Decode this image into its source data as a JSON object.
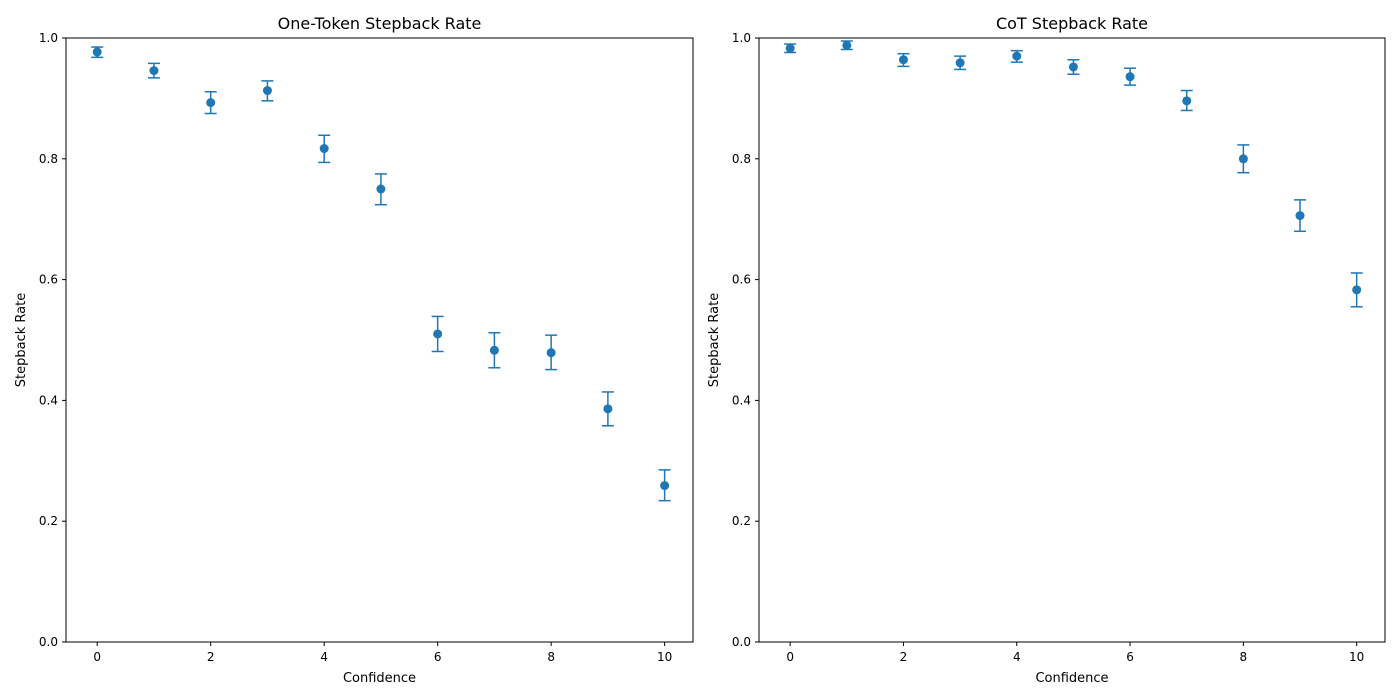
{
  "chart_data": [
    {
      "type": "scatter",
      "title": "One-Token Stepback Rate",
      "xlabel": "Confidence",
      "ylabel": "Stepback Rate",
      "xlim": [
        -0.55,
        10.5
      ],
      "ylim": [
        0,
        1.0
      ],
      "xticks": [
        0,
        2,
        4,
        6,
        8,
        10
      ],
      "yticks": [
        0.0,
        0.2,
        0.4,
        0.6,
        0.8,
        1.0
      ],
      "grid": false,
      "marker_color": "#1f77b4",
      "points": [
        {
          "x": 0,
          "y": 0.977,
          "lo": 0.968,
          "hi": 0.985
        },
        {
          "x": 1,
          "y": 0.946,
          "lo": 0.934,
          "hi": 0.958
        },
        {
          "x": 2,
          "y": 0.893,
          "lo": 0.875,
          "hi": 0.911
        },
        {
          "x": 3,
          "y": 0.913,
          "lo": 0.896,
          "hi": 0.929
        },
        {
          "x": 4,
          "y": 0.817,
          "lo": 0.794,
          "hi": 0.839
        },
        {
          "x": 5,
          "y": 0.75,
          "lo": 0.724,
          "hi": 0.775
        },
        {
          "x": 6,
          "y": 0.51,
          "lo": 0.481,
          "hi": 0.539
        },
        {
          "x": 7,
          "y": 0.483,
          "lo": 0.454,
          "hi": 0.512
        },
        {
          "x": 8,
          "y": 0.479,
          "lo": 0.451,
          "hi": 0.508
        },
        {
          "x": 9,
          "y": 0.386,
          "lo": 0.358,
          "hi": 0.414
        },
        {
          "x": 10,
          "y": 0.259,
          "lo": 0.234,
          "hi": 0.285
        }
      ]
    },
    {
      "type": "scatter",
      "title": "CoT Stepback Rate",
      "xlabel": "Confidence",
      "ylabel": "Stepback Rate",
      "xlim": [
        -0.55,
        10.5
      ],
      "ylim": [
        0,
        1.0
      ],
      "xticks": [
        0,
        2,
        4,
        6,
        8,
        10
      ],
      "yticks": [
        0.0,
        0.2,
        0.4,
        0.6,
        0.8,
        1.0
      ],
      "grid": false,
      "marker_color": "#1f77b4",
      "points": [
        {
          "x": 0,
          "y": 0.983,
          "lo": 0.976,
          "hi": 0.99
        },
        {
          "x": 1,
          "y": 0.988,
          "lo": 0.981,
          "hi": 0.995
        },
        {
          "x": 2,
          "y": 0.964,
          "lo": 0.953,
          "hi": 0.974
        },
        {
          "x": 3,
          "y": 0.959,
          "lo": 0.948,
          "hi": 0.97
        },
        {
          "x": 4,
          "y": 0.97,
          "lo": 0.96,
          "hi": 0.979
        },
        {
          "x": 5,
          "y": 0.952,
          "lo": 0.94,
          "hi": 0.964
        },
        {
          "x": 6,
          "y": 0.936,
          "lo": 0.922,
          "hi": 0.95
        },
        {
          "x": 7,
          "y": 0.896,
          "lo": 0.88,
          "hi": 0.913
        },
        {
          "x": 8,
          "y": 0.8,
          "lo": 0.777,
          "hi": 0.823
        },
        {
          "x": 9,
          "y": 0.706,
          "lo": 0.68,
          "hi": 0.732
        },
        {
          "x": 10,
          "y": 0.583,
          "lo": 0.555,
          "hi": 0.611
        }
      ]
    }
  ]
}
